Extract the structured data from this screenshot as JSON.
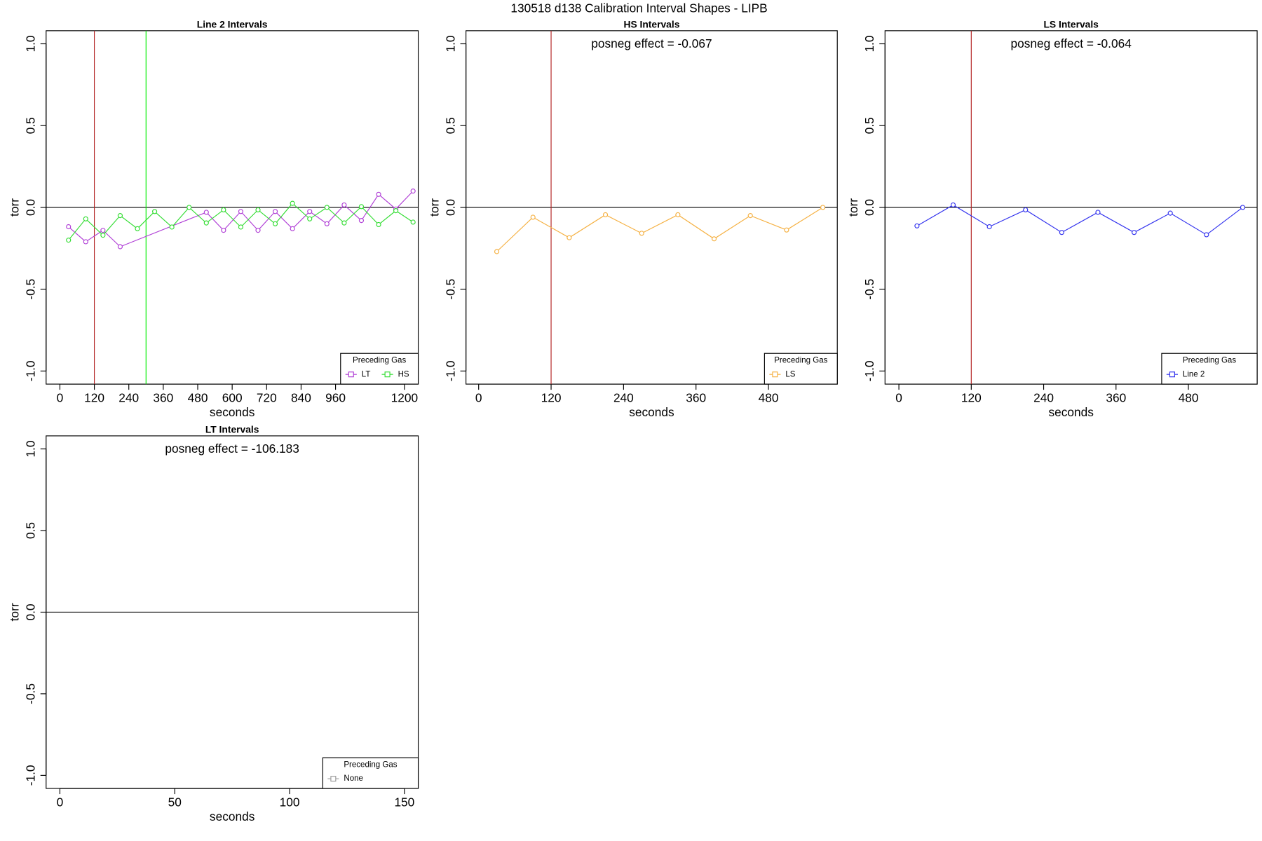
{
  "title": "130518   d138   Calibration Interval Shapes - LIPB",
  "chart_data": [
    {
      "type": "line",
      "title": "Line 2 Intervals",
      "xlabel": "seconds",
      "ylabel": "torr",
      "xlim": [
        -48,
        1248
      ],
      "ylim": [
        -1.08,
        1.08
      ],
      "xticks": [
        0,
        120,
        240,
        360,
        480,
        600,
        720,
        840,
        960,
        1200
      ],
      "yticks": [
        {
          "value": -1,
          "label": "-1.0"
        },
        -0.5,
        {
          "value": 0,
          "label": "0.0"
        },
        0.5,
        {
          "value": 1,
          "label": "1.0"
        }
      ],
      "hlines": [
        0
      ],
      "vlines": [
        {
          "x": 120,
          "color": "#b22222"
        },
        {
          "x": 300,
          "color": "#00ee00"
        }
      ],
      "legend_title": "Preceding Gas",
      "series": [
        {
          "name": "LT",
          "color": "#b03fd6",
          "x": [
            30,
            90,
            150,
            210,
            510,
            570,
            630,
            690,
            750,
            810,
            870,
            930,
            990,
            1050,
            1110,
            1170,
            1230
          ],
          "values": [
            -0.118,
            -0.21,
            -0.14,
            -0.24,
            -0.03,
            -0.14,
            -0.025,
            -0.14,
            -0.025,
            -0.13,
            -0.025,
            -0.1,
            0.015,
            -0.08,
            0.08,
            -0.01,
            0.1
          ]
        },
        {
          "name": "HS",
          "color": "#33dd33",
          "x": [
            30,
            90,
            150,
            210,
            270,
            330,
            390,
            450,
            510,
            570,
            630,
            690,
            750,
            810,
            870,
            930,
            990,
            1050,
            1110,
            1170,
            1230
          ],
          "values": [
            -0.2,
            -0.07,
            -0.17,
            -0.05,
            -0.13,
            -0.025,
            -0.12,
            0,
            -0.095,
            -0.015,
            -0.12,
            -0.015,
            -0.1,
            0.025,
            -0.07,
            0,
            -0.095,
            0.005,
            -0.105,
            -0.02,
            -0.09
          ]
        }
      ]
    },
    {
      "type": "line",
      "title": "HS Intervals",
      "xlabel": "seconds",
      "ylabel": "torr",
      "annotation": "posneg effect = -0.067",
      "xlim": [
        -21,
        594
      ],
      "ylim": [
        -1.08,
        1.08
      ],
      "xticks": [
        0,
        120,
        240,
        360,
        480
      ],
      "yticks": [
        {
          "value": -1,
          "label": "-1.0"
        },
        -0.5,
        {
          "value": 0,
          "label": "0.0"
        },
        0.5,
        {
          "value": 1,
          "label": "1.0"
        }
      ],
      "hlines": [
        0
      ],
      "vlines": [
        {
          "x": 120,
          "color": "#b22222"
        }
      ],
      "legend_title": "Preceding Gas",
      "series": [
        {
          "name": "LS",
          "color": "#f5b041",
          "x": [
            30,
            90,
            150,
            210,
            270,
            330,
            390,
            450,
            510,
            570
          ],
          "values": [
            -0.27,
            -0.06,
            -0.185,
            -0.045,
            -0.158,
            -0.045,
            -0.192,
            -0.05,
            -0.138,
            0
          ]
        }
      ]
    },
    {
      "type": "line",
      "title": "LS Intervals",
      "xlabel": "seconds",
      "ylabel": "torr",
      "annotation": "posneg effect = -0.064",
      "xlim": [
        -23,
        594
      ],
      "ylim": [
        -1.08,
        1.08
      ],
      "xticks": [
        0,
        120,
        240,
        360,
        480
      ],
      "yticks": [
        {
          "value": -1,
          "label": "-1.0"
        },
        -0.5,
        {
          "value": 0,
          "label": "0.0"
        },
        0.5,
        {
          "value": 1,
          "label": "1.0"
        }
      ],
      "hlines": [
        0
      ],
      "vlines": [
        {
          "x": 120,
          "color": "#b22222"
        }
      ],
      "legend_title": "Preceding Gas",
      "series": [
        {
          "name": "Line 2",
          "color": "#3333ee",
          "x": [
            30,
            90,
            150,
            210,
            270,
            330,
            390,
            450,
            510,
            570
          ],
          "values": [
            -0.113,
            0.015,
            -0.118,
            -0.015,
            -0.153,
            -0.03,
            -0.153,
            -0.035,
            -0.167,
            0
          ]
        }
      ]
    },
    {
      "type": "line",
      "title": "LT Intervals",
      "xlabel": "seconds",
      "ylabel": "torr",
      "annotation": "posneg effect = -106.183",
      "xlim": [
        -6,
        156
      ],
      "ylim": [
        -1.08,
        1.08
      ],
      "xticks": [
        0,
        50,
        100,
        150
      ],
      "yticks": [
        {
          "value": -1,
          "label": "-1.0"
        },
        -0.5,
        {
          "value": 0,
          "label": "0.0"
        },
        0.5,
        {
          "value": 1,
          "label": "1.0"
        }
      ],
      "hlines": [
        0
      ],
      "vlines": [],
      "legend_title": "Preceding Gas",
      "series": [
        {
          "name": "None",
          "color": "#999999",
          "x": [],
          "values": []
        }
      ]
    }
  ]
}
